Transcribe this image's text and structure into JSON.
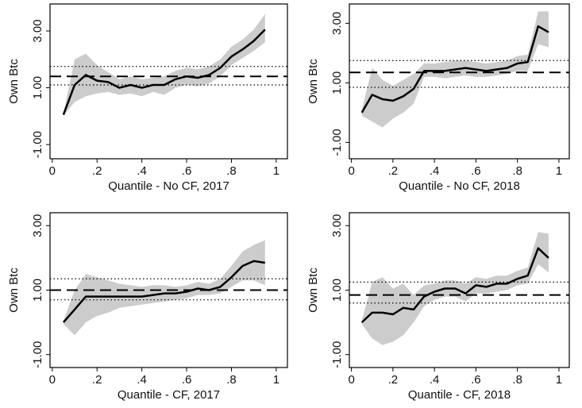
{
  "chart_data": [
    {
      "type": "line",
      "xlabel": "Quantile - No CF, 2017",
      "ylabel": "Own Btc",
      "x": [
        0.05,
        0.1,
        0.15,
        0.2,
        0.25,
        0.3,
        0.35,
        0.4,
        0.45,
        0.5,
        0.55,
        0.6,
        0.65,
        0.7,
        0.75,
        0.8,
        0.85,
        0.9,
        0.95
      ],
      "values": [
        0.05,
        1.1,
        1.45,
        1.25,
        1.2,
        1.0,
        1.1,
        1.0,
        1.1,
        1.1,
        1.3,
        1.4,
        1.35,
        1.45,
        1.7,
        2.1,
        2.35,
        2.65,
        3.05
      ],
      "ci_lower": [
        0.0,
        0.5,
        0.7,
        0.8,
        0.85,
        0.75,
        0.8,
        0.7,
        0.85,
        0.75,
        1.0,
        1.1,
        1.05,
        1.15,
        1.4,
        1.8,
        2.05,
        2.3,
        2.6
      ],
      "ci_upper": [
        0.1,
        2.0,
        2.2,
        1.8,
        1.55,
        1.3,
        1.4,
        1.3,
        1.35,
        1.4,
        1.6,
        1.7,
        1.65,
        1.75,
        2.0,
        2.45,
        2.7,
        3.05,
        3.6
      ],
      "ols": 1.4,
      "ols_ci": [
        1.1,
        1.75
      ],
      "color": "#000000",
      "band_color": "#cccccc",
      "xlim": [
        -0.01,
        1.05
      ],
      "ylim": [
        -1.5,
        3.95
      ],
      "xticks": [
        0,
        {
          "value": 0.2,
          "label": ".2"
        },
        {
          "value": 0.4,
          "label": ".4"
        },
        {
          "value": 0.6,
          "label": ".6"
        },
        {
          "value": 0.8,
          "label": ".8"
        },
        1
      ],
      "yticks": [
        {
          "value": -1,
          "label": "-1.00"
        },
        {
          "value": 1,
          "label": "1.00"
        },
        {
          "value": 3,
          "label": "3.00"
        }
      ]
    },
    {
      "type": "line",
      "xlabel": "Quantile - No CF, 2018",
      "ylabel": "Own Btc",
      "x": [
        0.05,
        0.1,
        0.15,
        0.2,
        0.25,
        0.3,
        0.35,
        0.4,
        0.45,
        0.5,
        0.55,
        0.6,
        0.65,
        0.7,
        0.75,
        0.8,
        0.85,
        0.9,
        0.95
      ],
      "values": [
        0.0,
        0.6,
        0.45,
        0.4,
        0.55,
        0.8,
        1.4,
        1.4,
        1.4,
        1.45,
        1.5,
        1.45,
        1.4,
        1.45,
        1.5,
        1.65,
        1.7,
        2.9,
        2.7
      ],
      "ci_lower": [
        -0.1,
        -0.3,
        -0.5,
        -0.2,
        0.0,
        0.3,
        1.2,
        1.2,
        1.15,
        1.2,
        1.25,
        1.2,
        1.2,
        1.25,
        1.3,
        1.4,
        1.4,
        2.3,
        2.2
      ],
      "ci_upper": [
        0.1,
        1.5,
        1.1,
        0.9,
        1.1,
        1.3,
        1.65,
        1.65,
        1.7,
        1.75,
        1.75,
        1.7,
        1.65,
        1.7,
        1.75,
        1.9,
        1.95,
        3.4,
        3.4
      ],
      "ols": 1.35,
      "ols_ci": [
        0.85,
        1.75
      ],
      "color": "#000000",
      "band_color": "#cccccc",
      "xlim": [
        -0.01,
        1.05
      ],
      "ylim": [
        -1.55,
        3.65
      ],
      "xticks": [
        0,
        {
          "value": 0.2,
          "label": ".2"
        },
        {
          "value": 0.4,
          "label": ".4"
        },
        {
          "value": 0.6,
          "label": ".6"
        },
        {
          "value": 0.8,
          "label": ".8"
        },
        1
      ],
      "yticks": [
        {
          "value": -1,
          "label": "-1.00"
        },
        {
          "value": 1,
          "label": "1.00"
        },
        {
          "value": 3,
          "label": "3.00"
        }
      ]
    },
    {
      "type": "line",
      "xlabel": "Quantile - CF, 2017",
      "ylabel": "Own Btc",
      "x": [
        0.05,
        0.1,
        0.15,
        0.2,
        0.25,
        0.3,
        0.35,
        0.4,
        0.45,
        0.5,
        0.55,
        0.6,
        0.65,
        0.7,
        0.75,
        0.8,
        0.85,
        0.9,
        0.95
      ],
      "values": [
        0.0,
        0.4,
        0.8,
        0.8,
        0.8,
        0.8,
        0.8,
        0.8,
        0.85,
        0.9,
        0.9,
        0.95,
        1.05,
        1.0,
        1.1,
        1.4,
        1.75,
        1.9,
        1.85
      ],
      "ci_lower": [
        -0.05,
        -0.4,
        0.0,
        0.2,
        0.3,
        0.45,
        0.5,
        0.55,
        0.6,
        0.65,
        0.7,
        0.75,
        0.85,
        0.85,
        0.9,
        1.1,
        1.3,
        1.3,
        1.15
      ],
      "ci_upper": [
        0.05,
        1.0,
        1.5,
        1.4,
        1.3,
        1.2,
        1.15,
        1.1,
        1.15,
        1.15,
        1.1,
        1.15,
        1.25,
        1.2,
        1.35,
        1.75,
        2.2,
        2.4,
        2.55
      ],
      "ols": 1.0,
      "ols_ci": [
        0.7,
        1.35
      ],
      "color": "#000000",
      "band_color": "#cccccc",
      "xlim": [
        -0.01,
        1.05
      ],
      "ylim": [
        -1.4,
        3.4
      ],
      "xticks": [
        0,
        {
          "value": 0.2,
          "label": ".2"
        },
        {
          "value": 0.4,
          "label": ".4"
        },
        {
          "value": 0.6,
          "label": ".6"
        },
        {
          "value": 0.8,
          "label": ".8"
        },
        1
      ],
      "yticks": [
        {
          "value": -1,
          "label": "-1.00"
        },
        {
          "value": 1,
          "label": "1.00"
        },
        {
          "value": 3,
          "label": "3.00"
        }
      ]
    },
    {
      "type": "line",
      "xlabel": "Quantile - CF, 2018",
      "ylabel": "Own Btc",
      "x": [
        0.05,
        0.1,
        0.15,
        0.2,
        0.25,
        0.3,
        0.35,
        0.4,
        0.45,
        0.5,
        0.55,
        0.6,
        0.65,
        0.7,
        0.75,
        0.8,
        0.85,
        0.9,
        0.95
      ],
      "values": [
        0.0,
        0.3,
        0.3,
        0.25,
        0.45,
        0.4,
        0.8,
        0.95,
        1.05,
        1.05,
        0.9,
        1.15,
        1.1,
        1.2,
        1.2,
        1.35,
        1.45,
        2.3,
        2.0
      ],
      "ci_lower": [
        -0.05,
        -0.5,
        -0.7,
        -0.6,
        -0.4,
        0.0,
        0.5,
        0.7,
        0.8,
        0.8,
        0.65,
        0.9,
        0.9,
        0.95,
        1.0,
        1.15,
        1.2,
        1.8,
        1.55
      ],
      "ci_upper": [
        0.05,
        1.25,
        1.4,
        1.05,
        1.2,
        0.85,
        1.15,
        1.2,
        1.3,
        1.3,
        1.2,
        1.4,
        1.35,
        1.45,
        1.45,
        1.6,
        1.7,
        2.8,
        2.75
      ],
      "ols": 0.85,
      "ols_ci": [
        0.6,
        1.25
      ],
      "color": "#000000",
      "band_color": "#cccccc",
      "xlim": [
        -0.01,
        1.05
      ],
      "ylim": [
        -1.4,
        3.4
      ],
      "xticks": [
        0,
        {
          "value": 0.2,
          "label": ".2"
        },
        {
          "value": 0.4,
          "label": ".4"
        },
        {
          "value": 0.6,
          "label": ".6"
        },
        {
          "value": 0.8,
          "label": ".8"
        },
        1
      ],
      "yticks": [
        {
          "value": -1,
          "label": "-1.00"
        },
        {
          "value": 1,
          "label": "1.00"
        },
        {
          "value": 3,
          "label": "3.00"
        }
      ]
    }
  ]
}
